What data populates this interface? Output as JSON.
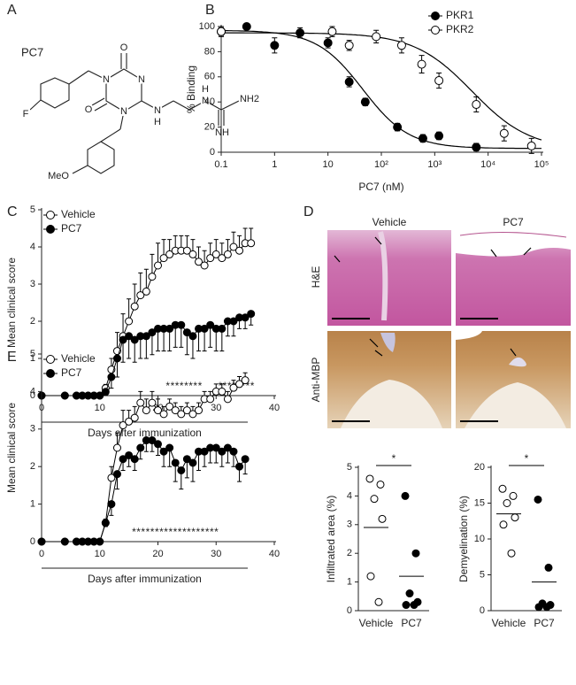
{
  "panels": [
    "A",
    "B",
    "C",
    "D",
    "E"
  ],
  "structure": {
    "name": "PC7",
    "atoms": [
      "O",
      "O",
      "N",
      "N",
      "N",
      "F",
      "N",
      "H",
      "N",
      "H",
      "NH2",
      "NH",
      "MeO"
    ]
  },
  "image_panel": {
    "columns": [
      "Vehicle",
      "PC7"
    ],
    "rows": [
      "H&E",
      "Anti-MBP"
    ]
  },
  "chart_data": [
    {
      "type": "scatter",
      "ylabel": "% Binding",
      "xlabel": "PC7 (nM)",
      "xlog": true,
      "xlim": [
        0.1,
        100000
      ],
      "ylim": [
        0,
        100
      ],
      "xticks": [
        0.1,
        1,
        10,
        {
          "value": 100,
          "label": "10²"
        },
        {
          "value": 1000,
          "label": "10³"
        },
        {
          "value": 10000,
          "label": "10⁴"
        },
        {
          "value": 100000,
          "label": "10⁵"
        }
      ],
      "yticks": [
        0,
        20,
        40,
        60,
        80,
        100
      ],
      "legend": "upper right",
      "series": [
        {
          "name": "PKR1",
          "color": "#000000",
          "marker_fill": "#000000",
          "x": [
            0.1,
            0.3,
            1,
            3,
            10,
            25,
            50,
            200,
            600,
            1200,
            6000
          ],
          "values": [
            96,
            100,
            85,
            95,
            87,
            56,
            40,
            20,
            11,
            13,
            4
          ],
          "errors": [
            4,
            2,
            6,
            4,
            4,
            4,
            3,
            3,
            3,
            3,
            3
          ],
          "curve": {
            "top": 97,
            "bottom": 3,
            "ic50": 45,
            "hill": 1
          }
        },
        {
          "name": "PKR2",
          "color": "#000000",
          "marker_fill": "#ffffff",
          "x": [
            0.1,
            12,
            25,
            80,
            240,
            570,
            1200,
            6000,
            20000,
            65000
          ],
          "values": [
            96,
            96,
            85,
            92,
            85,
            70,
            57,
            38,
            15,
            5
          ],
          "errors": [
            3,
            4,
            4,
            5,
            6,
            7,
            6,
            6,
            6,
            6
          ],
          "curve": {
            "top": 95,
            "bottom": 2,
            "ic50": 5000,
            "hill": 0.8
          }
        }
      ]
    },
    {
      "type": "line",
      "ylabel": "Mean clinical score",
      "xlabel": "Days after immunization",
      "xlim": [
        0,
        40
      ],
      "ylim": [
        0,
        5
      ],
      "xticks": [
        0,
        10,
        20,
        30,
        40
      ],
      "yticks": [
        0,
        1,
        2,
        3,
        4,
        5
      ],
      "legend": "upper left",
      "annotations": [
        "********",
        "********"
      ],
      "x": [
        0,
        4,
        6,
        7,
        8,
        9,
        10,
        11,
        12,
        13,
        14,
        15,
        16,
        17,
        18,
        19,
        20,
        21,
        22,
        23,
        24,
        25,
        26,
        27,
        28,
        29,
        30,
        31,
        32,
        33,
        34,
        35,
        36
      ],
      "series": [
        {
          "name": "Vehicle",
          "color": "#000000",
          "marker_fill": "#ffffff",
          "error_direction": "up",
          "values": [
            0,
            0,
            0,
            0,
            0,
            0,
            0,
            0.2,
            0.7,
            1.2,
            1.6,
            2.0,
            2.4,
            2.7,
            2.8,
            3.2,
            3.5,
            3.7,
            3.8,
            3.9,
            3.9,
            3.9,
            3.8,
            3.6,
            3.5,
            3.7,
            3.8,
            3.7,
            3.8,
            4.0,
            3.9,
            4.1,
            4.1
          ],
          "errors": [
            0,
            0,
            0,
            0,
            0,
            0,
            0,
            0.1,
            0.3,
            0.5,
            0.6,
            0.6,
            0.6,
            0.6,
            0.6,
            0.6,
            0.6,
            0.5,
            0.4,
            0.4,
            0.4,
            0.4,
            0.4,
            0.4,
            0.4,
            0.4,
            0.4,
            0.4,
            0.4,
            0.4,
            0.4,
            0.4,
            0.4
          ]
        },
        {
          "name": "PC7",
          "color": "#000000",
          "marker_fill": "#000000",
          "error_direction": "down",
          "values": [
            0,
            0,
            0,
            0,
            0,
            0,
            0,
            0.1,
            0.5,
            1.0,
            1.5,
            1.6,
            1.5,
            1.6,
            1.6,
            1.7,
            1.8,
            1.8,
            1.8,
            1.9,
            1.9,
            1.7,
            1.6,
            1.8,
            1.8,
            1.9,
            1.8,
            1.8,
            2.0,
            2.0,
            2.1,
            2.1,
            2.2
          ],
          "errors": [
            0,
            0,
            0,
            0,
            0,
            0,
            0,
            0.1,
            0.3,
            0.5,
            0.6,
            0.6,
            0.6,
            0.6,
            0.6,
            0.6,
            0.6,
            0.6,
            0.6,
            0.6,
            0.6,
            0.6,
            0.6,
            0.6,
            0.6,
            0.6,
            0.6,
            0.6,
            0.4,
            0.4,
            0.3,
            0.3,
            0.3
          ]
        }
      ]
    },
    {
      "type": "line",
      "ylabel": "Mean clinical score",
      "xlabel": "Days after immunization",
      "xlim": [
        0,
        40
      ],
      "ylim": [
        0,
        5
      ],
      "xticks": [
        0,
        10,
        20,
        30,
        40
      ],
      "yticks": [
        0,
        1,
        2,
        3,
        4,
        5
      ],
      "legend": "upper left",
      "annotations": [
        "*******************"
      ],
      "x": [
        0,
        4,
        6,
        7,
        8,
        9,
        10,
        11,
        12,
        13,
        14,
        15,
        16,
        17,
        18,
        19,
        20,
        21,
        22,
        23,
        24,
        25,
        26,
        27,
        28,
        29,
        30,
        31,
        32,
        33,
        34,
        35
      ],
      "series": [
        {
          "name": "Vehicle",
          "color": "#000000",
          "marker_fill": "#ffffff",
          "error_direction": "up",
          "values": [
            0,
            0,
            0,
            0,
            0,
            0,
            0,
            0.5,
            1.7,
            2.5,
            3.1,
            3.2,
            3.3,
            3.7,
            3.5,
            3.7,
            3.5,
            3.4,
            3.6,
            3.5,
            3.4,
            3.5,
            3.4,
            3.5,
            3.8,
            3.8,
            4.0,
            4.0,
            3.8,
            4.1,
            4.2,
            4.3
          ],
          "errors": [
            0,
            0,
            0,
            0,
            0,
            0,
            0,
            0.1,
            0.3,
            0.4,
            0.4,
            0.3,
            0.3,
            0.3,
            0.3,
            0.3,
            0.3,
            0.2,
            0.2,
            0.2,
            0.2,
            0.2,
            0.2,
            0.2,
            0.2,
            0.2,
            0.2,
            0.2,
            0.2,
            0.2,
            0.2,
            0.2
          ]
        },
        {
          "name": "PC7",
          "color": "#000000",
          "marker_fill": "#000000",
          "error_direction": "down",
          "values": [
            0,
            0,
            0,
            0,
            0,
            0,
            0,
            0.5,
            1.0,
            1.8,
            2.2,
            2.3,
            2.2,
            2.5,
            2.7,
            2.7,
            2.6,
            2.4,
            2.5,
            2.1,
            1.9,
            2.2,
            2.1,
            2.4,
            2.4,
            2.5,
            2.5,
            2.4,
            2.5,
            2.4,
            2.0,
            2.2
          ],
          "errors": [
            0,
            0,
            0,
            0,
            0,
            0,
            0,
            0.1,
            0.3,
            0.4,
            0.3,
            0.3,
            0.3,
            0.3,
            0.3,
            0.3,
            0.3,
            0.4,
            0.5,
            0.5,
            0.5,
            0.5,
            0.5,
            0.5,
            0.4,
            0.4,
            0.4,
            0.4,
            0.4,
            0.4,
            0.4,
            0.4
          ]
        }
      ]
    },
    {
      "type": "dot",
      "ylabel": "Infiltrated area (%)",
      "categories": [
        "Vehicle",
        "PC7"
      ],
      "ylim": [
        0,
        5
      ],
      "yticks": [
        0,
        1,
        2,
        3,
        4,
        5
      ],
      "annotation": "*",
      "marker_fills": [
        "#ffffff",
        "#000000"
      ],
      "values": [
        [
          4.6,
          4.4,
          3.9,
          3.2,
          1.2,
          0.3
        ],
        [
          4.0,
          2.0,
          0.6,
          0.3,
          0.2,
          0.2
        ]
      ],
      "means": [
        2.9,
        1.2
      ]
    },
    {
      "type": "dot",
      "ylabel": "Demyelination (%)",
      "categories": [
        "Vehicle",
        "PC7"
      ],
      "ylim": [
        0,
        20
      ],
      "yticks": [
        0,
        5,
        10,
        15,
        20
      ],
      "annotation": "*",
      "marker_fills": [
        "#ffffff",
        "#000000"
      ],
      "values": [
        [
          17,
          16,
          15,
          13,
          12,
          8
        ],
        [
          15.5,
          6,
          1,
          0.8,
          0.5,
          0.5
        ]
      ],
      "means": [
        13.5,
        4
      ]
    }
  ]
}
